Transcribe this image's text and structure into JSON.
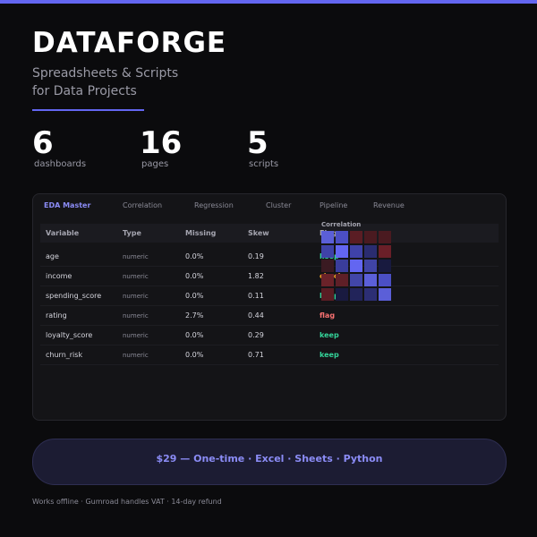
{
  "colors": {
    "accent": "#6366f1",
    "keep": "#34d399",
    "flag": "#f87171"
  },
  "brand": "DATAFORGE",
  "tagline": [
    "Spreadsheets & Scripts",
    "for Data Projects"
  ],
  "stats": [
    {
      "value": "6",
      "label": "dashboards"
    },
    {
      "value": "16",
      "label": "pages"
    },
    {
      "value": "5",
      "label": "scripts"
    }
  ],
  "tabs": [
    "EDA Master",
    "Correlation",
    "Regression",
    "Cluster",
    "Pipeline",
    "Revenue"
  ],
  "table": {
    "headers": [
      "Variable",
      "Type",
      "Missing",
      "Skew",
      "Flag"
    ],
    "rows": [
      {
        "variable": "age",
        "type": "numeric",
        "missing": "0.0%",
        "skew": "0.19",
        "flag": "keep"
      },
      {
        "variable": "income",
        "type": "numeric",
        "missing": "0.0%",
        "skew": "1.82",
        "flag": "check"
      },
      {
        "variable": "spending_score",
        "type": "numeric",
        "missing": "0.0%",
        "skew": "0.11",
        "flag": "keep"
      },
      {
        "variable": "rating",
        "type": "numeric",
        "missing": "2.7%",
        "skew": "0.44",
        "flag": "flag"
      },
      {
        "variable": "loyalty_score",
        "type": "numeric",
        "missing": "0.0%",
        "skew": "0.29",
        "flag": "keep"
      },
      {
        "variable": "churn_risk",
        "type": "numeric",
        "missing": "0.0%",
        "skew": "0.71",
        "flag": "keep"
      }
    ]
  },
  "correlation": {
    "title": "Correlation",
    "colors": [
      [
        "#5b5fd8",
        "#4b4fc4",
        "#5a1d24",
        "#4a1a20",
        "#4a1a20"
      ],
      [
        "#3f42a8",
        "#6366f1",
        "#3f42a8",
        "#2a2c70",
        "#6a1f28"
      ],
      [
        "#3a1a22",
        "#3a3d9c",
        "#6366f1",
        "#4044a6",
        "#181a3f"
      ],
      [
        "#6a2229",
        "#5e1f27",
        "#4246a8",
        "#5b5fd8",
        "#4b4fc4"
      ],
      [
        "#5a1d24",
        "#191a40",
        "#22245a",
        "#2c2e74",
        "#5b5fd8"
      ]
    ]
  },
  "cta": "$29 — One-time · Excel · Sheets · Python",
  "footer": "Works offline  ·  Gumroad handles VAT  ·  14-day refund"
}
